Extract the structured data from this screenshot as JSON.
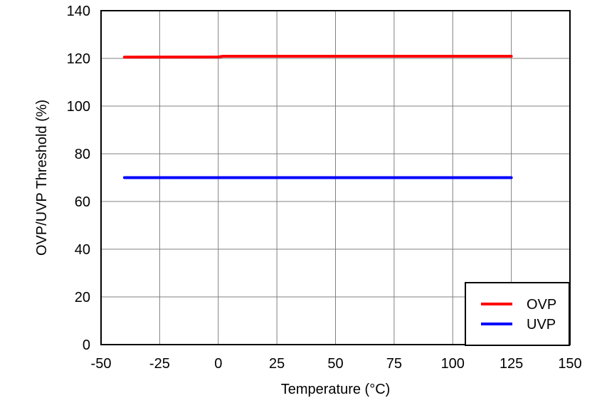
{
  "chart_data": {
    "type": "line",
    "xlabel": "Temperature (°C)",
    "ylabel": "OVP/UVP Threshold (%)",
    "xlim": [
      -50,
      150
    ],
    "ylim": [
      0,
      140
    ],
    "xticks": [
      -50,
      -25,
      0,
      25,
      50,
      75,
      100,
      125,
      150
    ],
    "yticks": [
      0,
      20,
      40,
      60,
      80,
      100,
      120,
      140
    ],
    "x_tick_labels": [
      "-50",
      "-25",
      "0",
      "25",
      "50",
      "75",
      "100",
      "125",
      "150"
    ],
    "y_tick_labels": [
      "0",
      "20",
      "40",
      "60",
      "80",
      "100",
      "120",
      "140"
    ],
    "grid": true,
    "legend_position": "bottom-right",
    "series": [
      {
        "name": "OVP",
        "color": "#ff0000",
        "x": [
          -40,
          0,
          2,
          25,
          50,
          75,
          100,
          125
        ],
        "y": [
          120.5,
          120.6,
          120.9,
          120.9,
          120.9,
          120.9,
          120.9,
          120.9
        ]
      },
      {
        "name": "UVP",
        "color": "#0000ff",
        "x": [
          -40,
          0,
          25,
          50,
          75,
          100,
          125
        ],
        "y": [
          70,
          70,
          70,
          70,
          70,
          70,
          70
        ]
      }
    ]
  }
}
